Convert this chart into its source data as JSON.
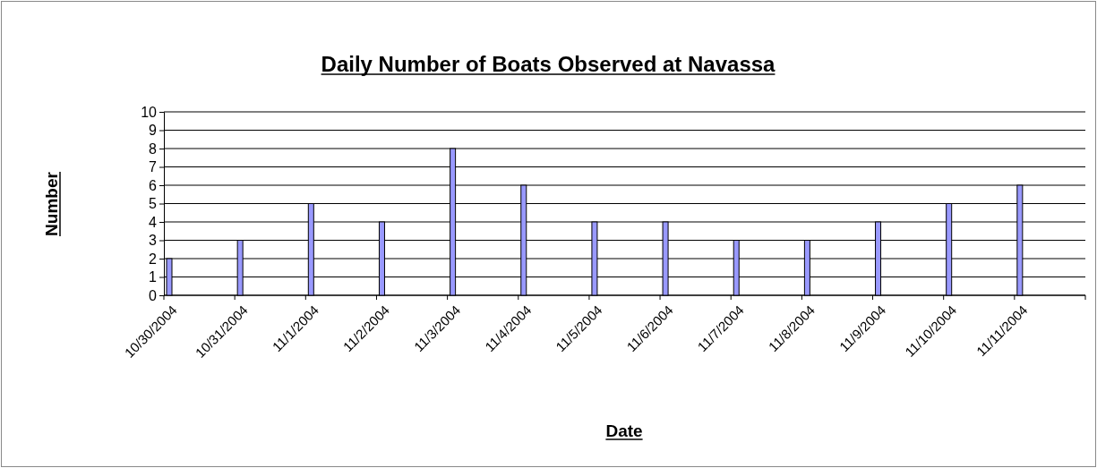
{
  "chart_data": {
    "type": "bar",
    "title": "Daily Number of Boats Observed at Navassa",
    "xlabel": "Date",
    "ylabel": "Number",
    "categories": [
      "10/30/2004",
      "10/31/2004",
      "11/1/2004",
      "11/2/2004",
      "11/3/2004",
      "11/4/2004",
      "11/5/2004",
      "11/6/2004",
      "11/7/2004",
      "11/8/2004",
      "11/9/2004",
      "11/10/2004",
      "11/11/2004"
    ],
    "values": [
      2,
      3,
      5,
      4,
      8,
      6,
      4,
      4,
      3,
      3,
      4,
      5,
      6
    ],
    "color": "#9999ff",
    "ylim": [
      0,
      10
    ],
    "yticks": [
      0,
      1,
      2,
      3,
      4,
      5,
      6,
      7,
      8,
      9,
      10
    ],
    "grid": "y"
  }
}
